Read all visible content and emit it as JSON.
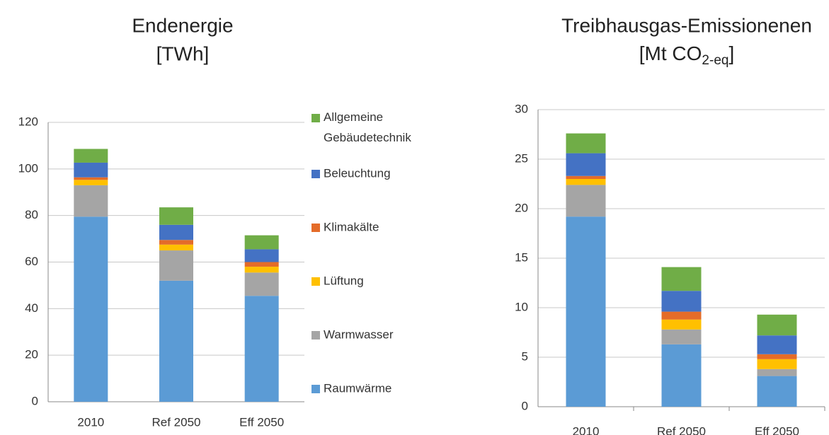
{
  "chart_data": [
    {
      "type": "bar",
      "stacked": true,
      "title": "Endenergie",
      "subtitle": "[TWh]",
      "categories": [
        "2010",
        "Ref 2050",
        "Eff 2050"
      ],
      "series": [
        {
          "name": "Raumwärme",
          "color": "#5b9bd5",
          "values": [
            79.5,
            52,
            45.5
          ]
        },
        {
          "name": "Warmwasser",
          "color": "#a5a5a5",
          "values": [
            13.5,
            13,
            10
          ]
        },
        {
          "name": "Lüftung",
          "color": "#ffc000",
          "values": [
            2.3,
            2.5,
            2.5
          ]
        },
        {
          "name": "Klimakälte",
          "color": "#e46c29",
          "values": [
            1.1,
            2,
            2
          ]
        },
        {
          "name": "Beleuchtung",
          "color": "#4472c4",
          "values": [
            6.3,
            6.5,
            5.5
          ]
        },
        {
          "name": "Allgemeine Gebäudetechnik",
          "color": "#70ad47",
          "values": [
            5.9,
            7.5,
            6
          ]
        }
      ],
      "ylim": [
        0,
        120
      ],
      "yticks": [
        0,
        20,
        40,
        60,
        80,
        100,
        120
      ],
      "grid": true,
      "legend": "right"
    },
    {
      "type": "bar",
      "stacked": true,
      "title": "Treibhausgas-Emissionenen",
      "subtitle": {
        "text": "[Mt CO",
        "subscript": "2-eq",
        "tail": "]"
      },
      "categories": [
        "2010",
        "Ref 2050",
        "Eff 2050"
      ],
      "series": [
        {
          "color": "#5b9bd5",
          "values": [
            19.2,
            6.3,
            3.1
          ]
        },
        {
          "color": "#a5a5a5",
          "values": [
            3.2,
            1.5,
            0.7
          ]
        },
        {
          "color": "#ffc000",
          "values": [
            0.6,
            1,
            1
          ]
        },
        {
          "color": "#e46c29",
          "values": [
            0.3,
            0.8,
            0.5
          ]
        },
        {
          "color": "#4472c4",
          "values": [
            2.3,
            2.1,
            1.9
          ]
        },
        {
          "color": "#70ad47",
          "values": [
            2,
            2.4,
            2.1
          ]
        }
      ],
      "ylim": [
        0,
        30
      ],
      "yticks": [
        0,
        5,
        10,
        15,
        20,
        25,
        30
      ],
      "grid": true
    }
  ]
}
